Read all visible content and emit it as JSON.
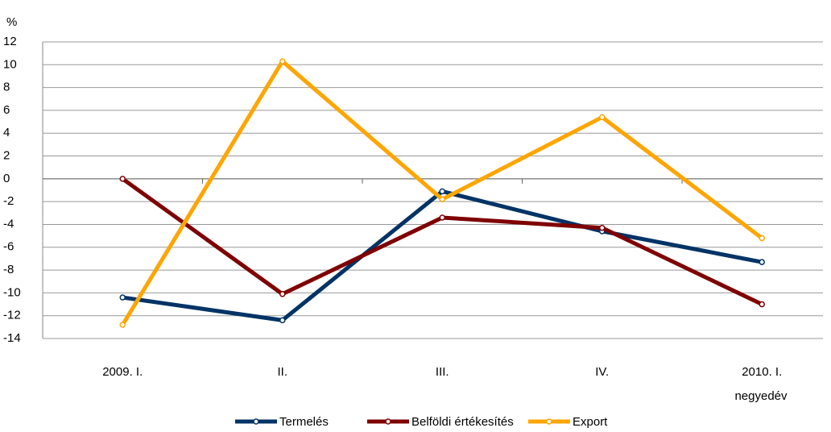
{
  "chart_data": {
    "type": "line",
    "y_label": "%",
    "x_label": "negyedév",
    "categories": [
      "2009. I.",
      "II.",
      "III.",
      "IV.",
      "2010. I."
    ],
    "series": [
      {
        "name": "Termelés",
        "color": "#003366",
        "values": [
          -10.4,
          -12.4,
          -1.1,
          -4.6,
          -7.3
        ]
      },
      {
        "name": "Belföldi értékesítés",
        "color": "#7f0000",
        "values": [
          0.0,
          -10.1,
          -3.4,
          -4.3,
          -11.0
        ]
      },
      {
        "name": "Export",
        "color": "#ffa500",
        "values": [
          -12.8,
          10.3,
          -1.8,
          5.4,
          -5.2
        ]
      }
    ],
    "ylim": [
      -14,
      12
    ],
    "yticks": [
      -14,
      -12,
      -10,
      -8,
      -6,
      -4,
      -2,
      0,
      2,
      4,
      6,
      8,
      10,
      12
    ],
    "grid": true
  }
}
